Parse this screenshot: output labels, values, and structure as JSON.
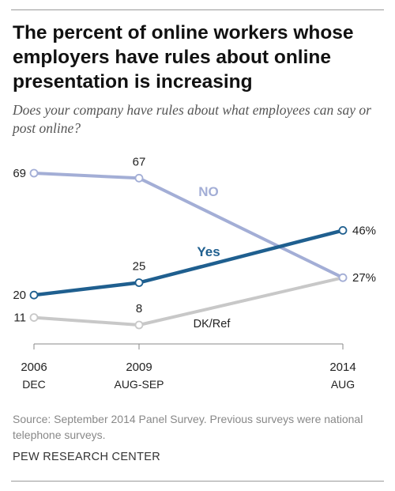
{
  "title": "The percent of online workers whose employers have rules about online presentation is increasing",
  "subtitle": "Does your company have rules about what employees can say or post online?",
  "source": "Source: September 2014 Panel Survey. Previous surveys were national telephone surveys.",
  "credit": "PEW RESEARCH CENTER",
  "chart_data": {
    "type": "line",
    "categories": [
      {
        "year": "2006",
        "period": "DEC"
      },
      {
        "year": "2009",
        "period": "AUG-SEP"
      },
      {
        "year": "2014",
        "period": "AUG"
      }
    ],
    "x": [
      2006.92,
      2009.67,
      2014.6
    ],
    "ylim": [
      0,
      75
    ],
    "grid": false,
    "series": [
      {
        "name": "NO",
        "values": [
          69,
          67,
          27
        ],
        "point_labels": [
          "69",
          "67",
          "27%"
        ],
        "color": "#a3aed6"
      },
      {
        "name": "Yes",
        "values": [
          20,
          25,
          46
        ],
        "point_labels": [
          "20",
          "25",
          "46%"
        ],
        "color": "#1f5f8f"
      },
      {
        "name": "DK/Ref",
        "values": [
          11,
          8,
          27
        ],
        "point_labels": [
          "11",
          "8",
          "27%"
        ],
        "color": "#c8c8c8"
      }
    ]
  }
}
